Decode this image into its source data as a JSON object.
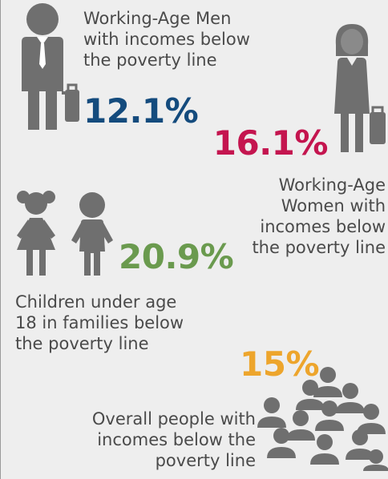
{
  "colors": {
    "icon_gray": "#6f6f6f",
    "men_blue": "#144b7d",
    "women_crimson": "#c4154f",
    "children_green": "#6a9a4e",
    "overall_orange": "#eda52c",
    "text_gray": "#4a4a4a",
    "background": "#eeeeee"
  },
  "men": {
    "icon": "businessman-with-briefcase-icon",
    "label_lines": [
      "Working-Age Men",
      "with incomes below",
      "the poverty line"
    ],
    "stat": "12.1%"
  },
  "women": {
    "icon": "businesswoman-with-briefcase-icon",
    "label_lines": [
      "Working-Age",
      "Women with",
      "incomes below",
      "the poverty line"
    ],
    "stat": "16.1%"
  },
  "children": {
    "icon": "children-girl-and-boy-icon",
    "label_lines": [
      "Children under age",
      "18 in families below",
      "the poverty line"
    ],
    "stat": "20.9%"
  },
  "overall": {
    "icon": "crowd-of-people-icon",
    "label_lines": [
      "Overall people with",
      "incomes below the",
      "poverty line"
    ],
    "stat": "15%"
  }
}
